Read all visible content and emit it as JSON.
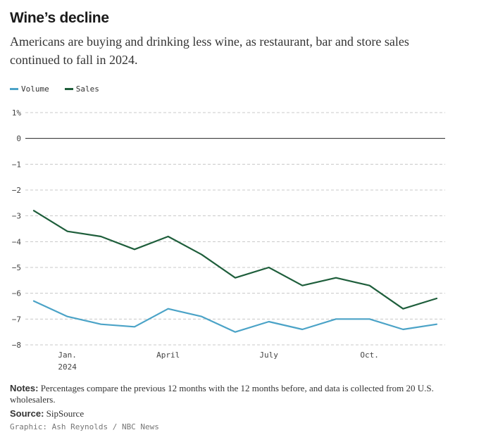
{
  "chart_data": {
    "type": "line",
    "title": "Wine’s decline",
    "subtitle": "Americans are buying and drinking less wine, as restaurant, bar and store sales continued to fall in 2024.",
    "x": [
      "Dec. 2023",
      "Jan. 2024",
      "Feb. 2024",
      "Mar. 2024",
      "Apr. 2024",
      "May 2024",
      "Jun. 2024",
      "Jul. 2024",
      "Aug. 2024",
      "Sep. 2024",
      "Oct. 2024",
      "Nov. 2024",
      "Dec. 2024"
    ],
    "x_ticks": [
      {
        "index": 1,
        "label": "Jan.",
        "sublabel": "2024"
      },
      {
        "index": 4,
        "label": "April",
        "sublabel": ""
      },
      {
        "index": 7,
        "label": "July",
        "sublabel": ""
      },
      {
        "index": 10,
        "label": "Oct.",
        "sublabel": ""
      }
    ],
    "series": [
      {
        "name": "Volume",
        "color": "#4ba3c7",
        "values": [
          -6.3,
          -6.9,
          -7.2,
          -7.3,
          -6.6,
          -6.9,
          -7.5,
          -7.1,
          -7.4,
          -7.0,
          -7.0,
          -7.4,
          -7.2
        ]
      },
      {
        "name": "Sales",
        "color": "#1e5e3b",
        "values": [
          -2.8,
          -3.6,
          -3.8,
          -4.3,
          -3.8,
          -4.5,
          -5.4,
          -5.0,
          -5.7,
          -5.4,
          -5.7,
          -6.6,
          -6.2
        ]
      }
    ],
    "ylim": [
      -8,
      1
    ],
    "yticks": [
      1,
      0,
      -1,
      -2,
      -3,
      -4,
      -5,
      -6,
      -7,
      -8
    ],
    "ytick_labels": [
      "1%",
      "0",
      "−1",
      "−2",
      "−3",
      "−4",
      "−5",
      "−6",
      "−7",
      "−8"
    ],
    "xlabel": "",
    "ylabel": "",
    "grid": true,
    "legend": "top-left"
  },
  "notes": {
    "label": "Notes:",
    "text": " Percentages compare the previous 12 months with the 12 months before, and data is collected from 20 U.S. wholesalers."
  },
  "source": {
    "label": "Source:",
    "text": " SipSource"
  },
  "credit": "Graphic: Ash Reynolds / NBC News"
}
